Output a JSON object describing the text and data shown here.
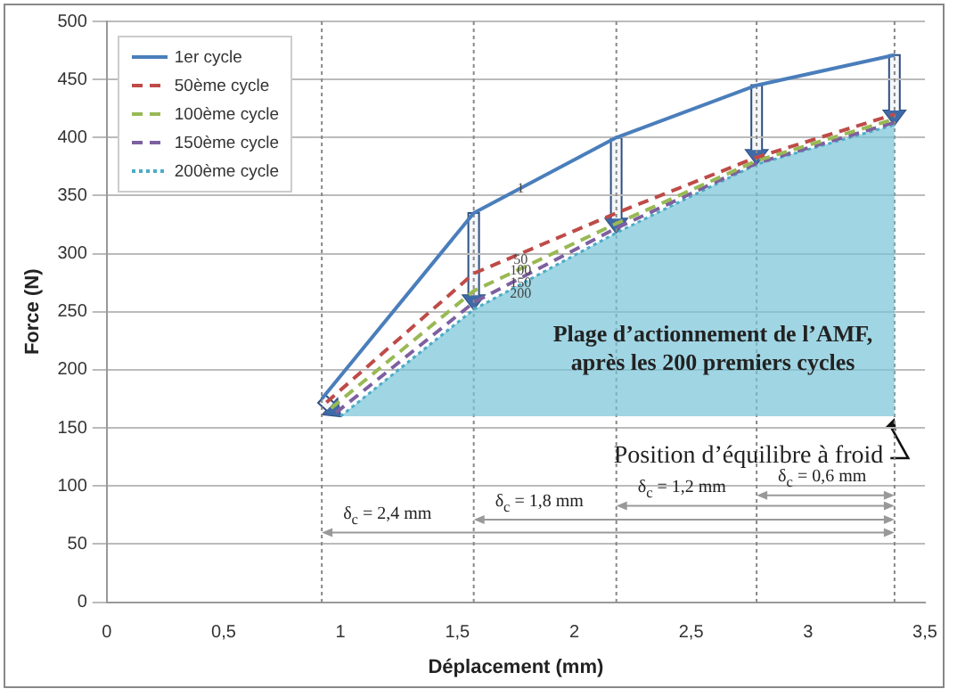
{
  "chart_data": {
    "type": "line",
    "xlabel": "Déplacement (mm)",
    "ylabel": "Force (N)",
    "xlim": [
      0,
      3.5
    ],
    "ylim": [
      0,
      500
    ],
    "xticks": [
      0,
      {
        "value": 0.5,
        "label": "0,5"
      },
      1,
      {
        "value": 1.5,
        "label": "1,5"
      },
      2,
      {
        "value": 2.5,
        "label": "2,5"
      },
      3,
      {
        "value": 3.5,
        "label": "3,5"
      }
    ],
    "yticks": [
      0,
      50,
      100,
      150,
      200,
      250,
      300,
      350,
      400,
      450,
      500
    ],
    "grid": "y",
    "legend": "top left",
    "marker": "none",
    "series": [
      {
        "name": "1er cycle",
        "color": "#4a7ebb",
        "line_style": "solid",
        "x": [
          0.92,
          1.57,
          2.18,
          2.78,
          3.37
        ],
        "values": [
          175,
          335,
          400,
          445,
          471
        ]
      },
      {
        "name": "50ème cycle",
        "color": "#be4b48",
        "line_style": "dashed",
        "x": [
          0.94,
          1.57,
          2.18,
          2.78,
          3.37
        ],
        "values": [
          172,
          283,
          335,
          383,
          420
        ]
      },
      {
        "name": "100ème cycle",
        "color": "#98b954",
        "line_style": "dashed",
        "x": [
          0.96,
          1.57,
          2.18,
          2.78,
          3.37
        ],
        "values": [
          167,
          268,
          326,
          380,
          416
        ]
      },
      {
        "name": "150ème cycle",
        "color": "#7d60a0",
        "line_style": "dashed",
        "x": [
          0.98,
          1.57,
          2.18,
          2.78,
          3.37
        ],
        "values": [
          163,
          258,
          322,
          378,
          413
        ]
      },
      {
        "name": "200ème cycle",
        "color": "#4bacc6",
        "line_style": "dotted",
        "x": [
          1.0,
          1.57,
          2.18,
          2.78,
          3.37
        ],
        "values": [
          160,
          252,
          318,
          377,
          411
        ],
        "lower": [
          160,
          160,
          160,
          160,
          160
        ],
        "upper": [
          160,
          252,
          318,
          377,
          411
        ]
      }
    ],
    "ref_lines": [
      {
        "axis": "x",
        "value": 0.92,
        "color": "#888888",
        "line_style": "dotted"
      },
      {
        "axis": "x",
        "value": 1.57,
        "color": "#888888",
        "line_style": "dotted"
      },
      {
        "axis": "x",
        "value": 2.18,
        "color": "#888888",
        "line_style": "dotted"
      },
      {
        "axis": "x",
        "value": 2.78,
        "color": "#888888",
        "line_style": "dotted"
      },
      {
        "axis": "x",
        "value": 3.37,
        "color": "#888888",
        "line_style": "dotted"
      }
    ],
    "annotations": [
      {
        "text": "1",
        "x": 1.77,
        "y": 356
      },
      {
        "text": "50",
        "x": 1.77,
        "y": 295
      },
      {
        "text": "100",
        "x": 1.77,
        "y": 285
      },
      {
        "text": "150",
        "x": 1.77,
        "y": 275
      },
      {
        "text": "200",
        "x": 1.77,
        "y": 265
      },
      "Plage d’actionnement de l’AMF,\naprès les 200 premiers cycles",
      "Position d’équilibre à froid",
      {
        "text": "δ$_{c}$ = 2,4 mm",
        "x": 0.92,
        "y": 60
      },
      {
        "text": "δ$_{c}$ = 1,8 mm",
        "x": 1.57,
        "y": 71
      },
      {
        "text": "δ$_{c}$ = 1,2 mm",
        "x": 2.18,
        "y": 83
      },
      {
        "text": "δ$_{c}$ = 0,6 mm",
        "x": 2.78,
        "y": 92
      }
    ]
  }
}
